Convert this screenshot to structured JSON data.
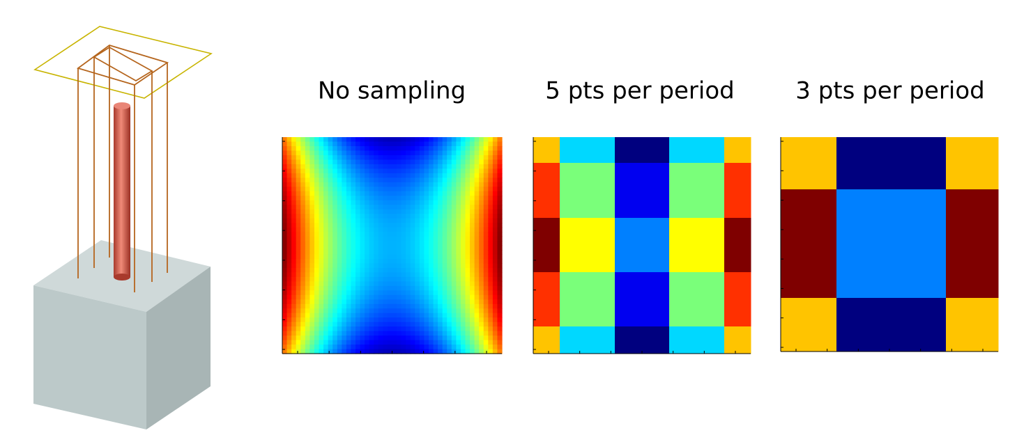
{
  "panels": [
    {
      "title": "No sampling"
    },
    {
      "title": "5 pts per period"
    },
    {
      "title": "3 pts per period"
    }
  ]
}
